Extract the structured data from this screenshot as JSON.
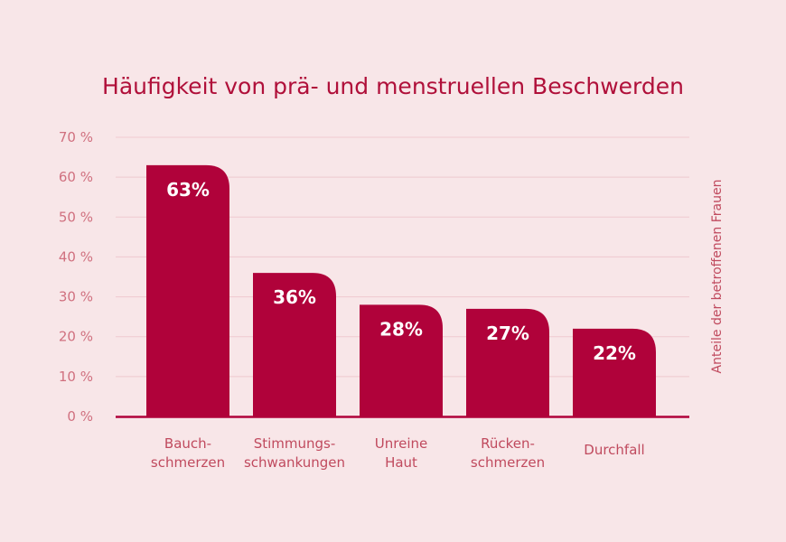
{
  "chart_data": {
    "type": "bar",
    "title": "Häufigkeit von prä- und menstruellen Beschwerden",
    "ylabel": "Anteile der betroffenen Frauen",
    "ylim": [
      0,
      70
    ],
    "yticks": [
      0,
      10,
      20,
      30,
      40,
      50,
      60,
      70
    ],
    "ytick_labels": [
      "0 %",
      "10 %",
      "20 %",
      "30 %",
      "40 %",
      "50 %",
      "60 %",
      "70 %"
    ],
    "categories": [
      [
        "Bauch-",
        "schmerzen"
      ],
      [
        "Stimmungs-",
        "schwankungen"
      ],
      [
        "Unreine",
        "Haut"
      ],
      [
        "Rücken-",
        "schmerzen"
      ],
      [
        "Durchfall"
      ]
    ],
    "values": [
      63,
      36,
      28,
      27,
      22
    ],
    "value_labels": [
      "63%",
      "36%",
      "28%",
      "27%",
      "22%"
    ],
    "grid": true,
    "colors": {
      "bar": "#b0023a",
      "grid": "#efc9cf",
      "axis": "#b0023a"
    }
  }
}
